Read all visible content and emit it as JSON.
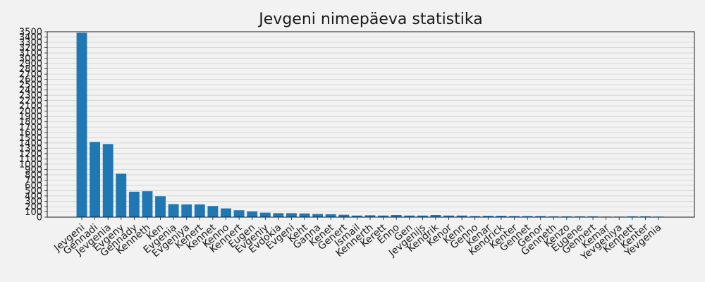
{
  "chart_data": {
    "type": "bar",
    "title": "Jevgeni nimepäeva statistika",
    "xlabel": "",
    "ylabel": "",
    "ylim": [
      0,
      3500
    ],
    "ytick_step": 100,
    "grid": true,
    "bar_color": "#1f77b4",
    "background_color": "#f2f2f2",
    "categories": [
      "Jevgeni",
      "Gennadi",
      "Jevgenia",
      "Evgeny",
      "Gennady",
      "Kenneth",
      "Ken",
      "Evgenia",
      "Evgeniya",
      "Kenert",
      "Kennet",
      "Kenno",
      "Kennert",
      "Eugen",
      "Evgeniy",
      "Evdokia",
      "Evgeni",
      "Keht",
      "Ganna",
      "Kenet",
      "Genert",
      "Ismail",
      "Kennerth",
      "Kerett",
      "Enno",
      "Gen",
      "Jevgenijs",
      "Kendrik",
      "Kenor",
      "Kenn",
      "Genno",
      "Kenar",
      "Kendrick",
      "Kenter",
      "Gennet",
      "Genor",
      "Genneth",
      "Kenzo",
      "Eugene",
      "Gennert",
      "Kemar",
      "Yevgeniya",
      "Kennett",
      "Kenter",
      "Yevgenia"
    ],
    "values": [
      3480,
      1420,
      1380,
      820,
      480,
      490,
      395,
      245,
      240,
      240,
      210,
      165,
      130,
      110,
      85,
      75,
      75,
      70,
      60,
      55,
      45,
      30,
      35,
      30,
      40,
      30,
      30,
      40,
      30,
      30,
      20,
      25,
      25,
      20,
      20,
      20,
      15,
      15,
      15,
      15,
      10,
      10,
      15,
      15,
      10
    ]
  }
}
